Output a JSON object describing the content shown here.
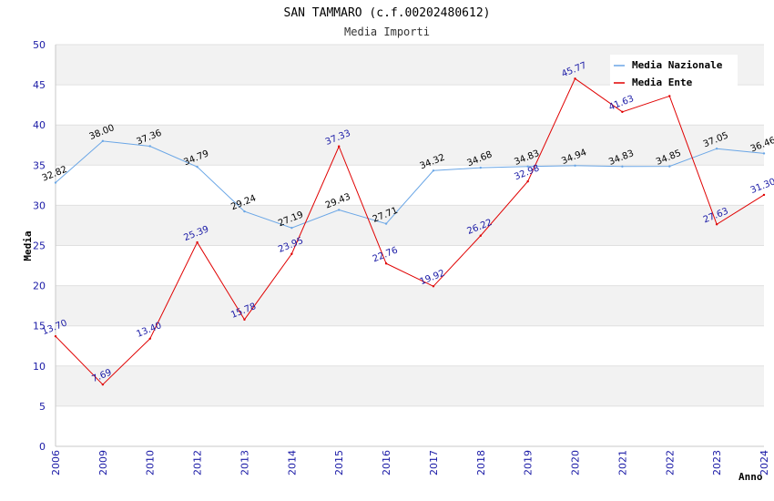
{
  "chart_data": {
    "type": "line",
    "title": "SAN TAMMARO (c.f.00202480612)",
    "subtitle": "Media Importi",
    "xlabel": "Anno",
    "ylabel": "Media",
    "ylim": [
      0,
      50
    ],
    "yticks": [
      0,
      5,
      10,
      15,
      20,
      25,
      30,
      35,
      40,
      45,
      50
    ],
    "categories": [
      "2006",
      "2009",
      "2010",
      "2012",
      "2013",
      "2014",
      "2015",
      "2016",
      "2017",
      "2018",
      "2019",
      "2020",
      "2021",
      "2022",
      "2023",
      "2024"
    ],
    "series": [
      {
        "name": "Media Nazionale",
        "color": "#6aa6e6",
        "values": [
          32.82,
          38.0,
          37.36,
          34.79,
          29.24,
          27.19,
          29.43,
          27.71,
          34.32,
          34.68,
          34.83,
          34.94,
          34.83,
          34.85,
          37.05,
          36.46
        ],
        "labels": [
          "32.82",
          "38.00",
          "37.36",
          "34.79",
          "29.24",
          "27.19",
          "29.43",
          "27.71",
          "34.32",
          "34.68",
          "34.83",
          "34.94",
          "34.83",
          "34.85",
          "37.05",
          "36.46"
        ]
      },
      {
        "name": "Media Ente",
        "color": "#e00000",
        "values": [
          13.7,
          7.69,
          13.4,
          25.39,
          15.78,
          23.95,
          37.33,
          22.76,
          19.92,
          26.22,
          32.98,
          45.77,
          41.63,
          43.6,
          27.63,
          31.3
        ],
        "labels": [
          "13.70",
          "7.69",
          "13.40",
          "25.39",
          "15.78",
          "23.95",
          "37.33",
          "22.76",
          "19.92",
          "26.22",
          "32.98",
          "45.77",
          "41.63",
          "",
          "27.63",
          "31.30"
        ]
      }
    ],
    "legend": {
      "position": "top-right"
    },
    "grid": true
  }
}
